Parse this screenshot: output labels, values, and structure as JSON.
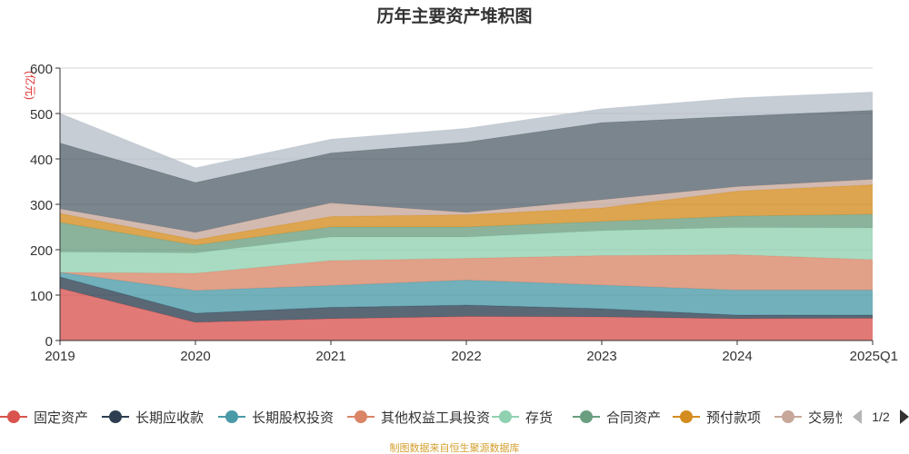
{
  "chart_data": {
    "type": "area",
    "stacked": true,
    "title": "历年主要资产堆积图",
    "ylabel": "(亿元)",
    "ylim": [
      0,
      600
    ],
    "yticks": [
      0,
      100,
      200,
      300,
      400,
      500,
      600
    ],
    "categories": [
      "2019",
      "2020",
      "2021",
      "2022",
      "2023",
      "2024",
      "2025Q1"
    ],
    "grid": true,
    "legend_position": "bottom",
    "series": [
      {
        "name": "固定资产",
        "color": "#d9534f",
        "values": [
          115,
          40,
          48,
          53,
          52,
          48,
          49
        ]
      },
      {
        "name": "长期应收款",
        "color": "#2c3e50",
        "values": [
          25,
          20,
          25,
          25,
          18,
          8,
          7
        ]
      },
      {
        "name": "长期股权投资",
        "color": "#4a9aa8",
        "values": [
          10,
          50,
          48,
          55,
          52,
          55,
          55
        ]
      },
      {
        "name": "其他权益工具投资",
        "color": "#d98566",
        "values": [
          0,
          38,
          55,
          48,
          65,
          78,
          67
        ]
      },
      {
        "name": "存货",
        "color": "#8fd1b1",
        "values": [
          45,
          45,
          52,
          47,
          55,
          60,
          70
        ]
      },
      {
        "name": "合同资产",
        "color": "#6a9e80",
        "values": [
          65,
          17,
          22,
          22,
          20,
          25,
          30
        ]
      },
      {
        "name": "预付款项",
        "color": "#d48c1e",
        "values": [
          20,
          12,
          23,
          27,
          30,
          55,
          65
        ]
      },
      {
        "name": "交易性金融资产",
        "color": "#c7a79a",
        "values": [
          10,
          16,
          30,
          5,
          18,
          10,
          12
        ]
      },
      {
        "name": "",
        "color": "#56636d",
        "values": [
          145,
          110,
          110,
          155,
          170,
          155,
          152
        ]
      },
      {
        "name": "",
        "color": "#b6bfc9",
        "values": [
          65,
          32,
          30,
          30,
          30,
          40,
          40
        ]
      }
    ]
  },
  "legend": {
    "page_indicator": "1/2",
    "prev_icon": "triangle-left-icon",
    "next_icon": "triangle-right-icon"
  },
  "source_note": "制图数据来自恒生聚源数据库"
}
